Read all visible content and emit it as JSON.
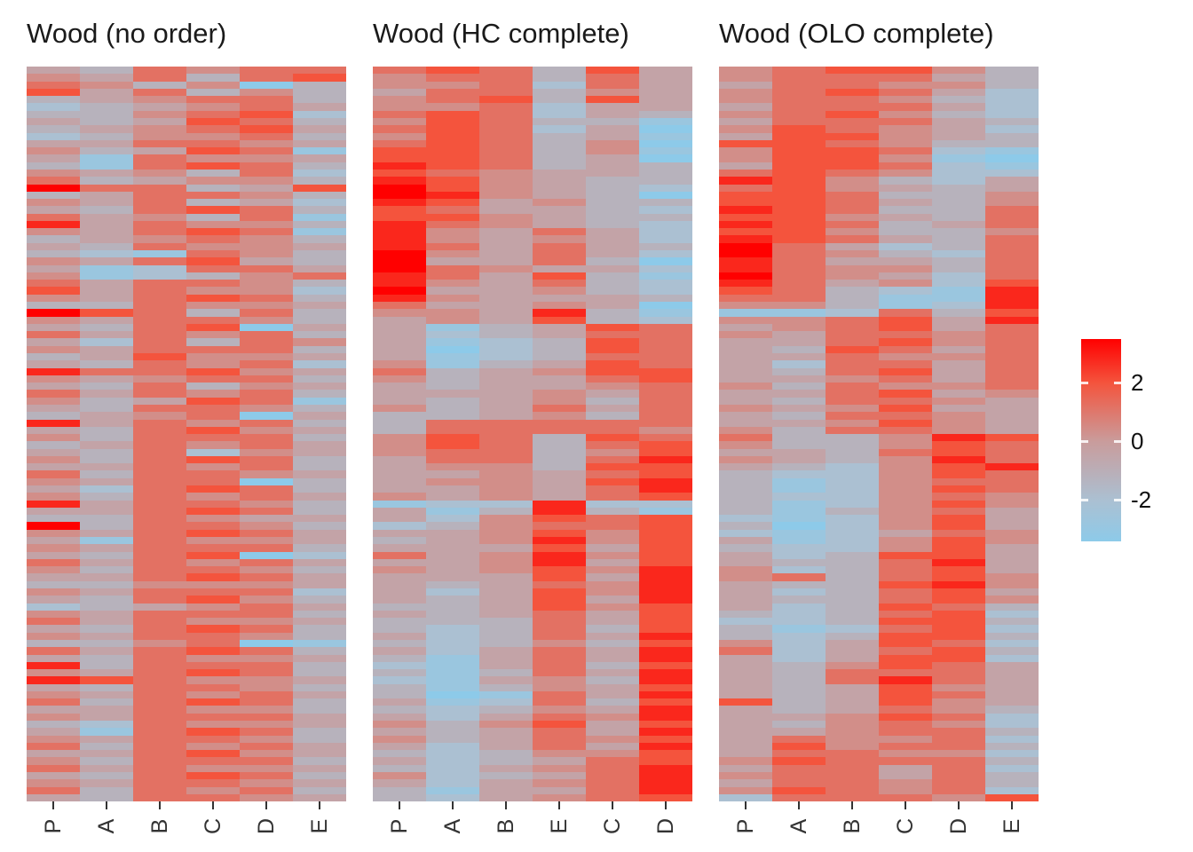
{
  "chart_data": {
    "type": "heatmap",
    "dataset": "Wood",
    "row_count": 100,
    "value_encoding": "Each row is a 6-digit string, one digit per column in displayed order; cell value = (digit - 4.5) * 0.8, i.e. digits 0..9 map to z-scores -3.6..+3.6",
    "value_range": [
      -3.6,
      3.6
    ],
    "colorscale": {
      "values": [
        -3.4,
        -2,
        0,
        2,
        3.5
      ],
      "colors": [
        "#8dcae9",
        "#abc0d2",
        "#c99c9c",
        "#f4543d",
        "#ff0000"
      ],
      "high_color": "#ff0000",
      "mid_color": "#c99c9c",
      "low_color": "#8dcae9"
    },
    "legend": {
      "orientation": "vertical",
      "position": "right",
      "tick_labels": [
        "2",
        "0",
        "-2"
      ],
      "tick_values": [
        2,
        0,
        -2
      ]
    },
    "panels": [
      {
        "title": "Wood (no order)",
        "columns": [
          "P",
          "A",
          "B",
          "C",
          "D",
          "E"
        ],
        "rows": [
          "436566",
          "546367",
          "653503",
          "746353",
          "345663",
          "234564",
          "335672",
          "434763",
          "345674",
          "235563",
          "446654",
          "534761",
          "416554",
          "316763",
          "545362",
          "634553",
          "966347",
          "346653",
          "546342",
          "436763",
          "645361",
          "846553",
          "546761",
          "345653",
          "436554",
          "321653",
          "546743",
          "412664",
          "512356",
          "646653",
          "746552",
          "546763",
          "336554",
          "976363",
          "546653",
          "436704",
          "646563",
          "426365",
          "546663",
          "347554",
          "436562",
          "866754",
          "545663",
          "436354",
          "646563",
          "534761",
          "436653",
          "345604",
          "846563",
          "436754",
          "536663",
          "346564",
          "436254",
          "536763",
          "446563",
          "636654",
          "546603",
          "426763",
          "536564",
          "846653",
          "446763",
          "336544",
          "936653",
          "546764",
          "416554",
          "546663",
          "436702",
          "646564",
          "536653",
          "446764",
          "335554",
          "546662",
          "436753",
          "234564",
          "546663",
          "646554",
          "436763",
          "546653",
          "335601",
          "646763",
          "436554",
          "836663",
          "546763",
          "876554",
          "436653",
          "546564",
          "636763",
          "446553",
          "546664",
          "326554",
          "416763",
          "546653",
          "636564",
          "446754",
          "536663",
          "646554",
          "436763",
          "546654",
          "636563",
          "436654"
        ]
      },
      {
        "title": "Wood (HC complete)",
        "columns": [
          "P",
          "A",
          "B",
          "E",
          "C",
          "D"
        ],
        "rows": [
          "676374",
          "566364",
          "556264",
          "466354",
          "567374",
          "556244",
          "676243",
          "576331",
          "676240",
          "576341",
          "676350",
          "776351",
          "776340",
          "876343",
          "765443",
          "875433",
          "975432",
          "985430",
          "874533",
          "764432",
          "775433",
          "865432",
          "854642",
          "854542",
          "864643",
          "954642",
          "944630",
          "965442",
          "864731",
          "854632",
          "944532",
          "854443",
          "644540",
          "554831",
          "454732",
          "413476",
          "423466",
          "412376",
          "402376",
          "412366",
          "513476",
          "634577",
          "534467",
          "434456",
          "444546",
          "434536",
          "534646",
          "334536",
          "366666",
          "366665",
          "576376",
          "576367",
          "566357",
          "466368",
          "455377",
          "445467",
          "455478",
          "445468",
          "545467",
          "122822",
          "413831",
          "425767",
          "235667",
          "445757",
          "345857",
          "444747",
          "645857",
          "445847",
          "545758",
          "444748",
          "434658",
          "424758",
          "434748",
          "334757",
          "434647",
          "333647",
          "323637",
          "423648",
          "323537",
          "424648",
          "314648",
          "214637",
          "313648",
          "214538",
          "313547",
          "301648",
          "412637",
          "323548",
          "424658",
          "535747",
          "434648",
          "534657",
          "424648",
          "323557",
          "423467",
          "324568",
          "523468",
          "424568",
          "314468",
          "324567"
        ]
      },
      {
        "title": "Wood (OLO complete)",
        "columns": [
          "P",
          "A",
          "B",
          "C",
          "D",
          "E"
        ],
        "rows": [
          "567753",
          "566643",
          "466553",
          "567642",
          "566532",
          "466642",
          "567532",
          "466643",
          "576542",
          "477543",
          "776533",
          "577621",
          "577510",
          "477621",
          "676522",
          "875324",
          "675434",
          "776335",
          "776435",
          "876336",
          "775436",
          "876346",
          "775335",
          "876436",
          "964236",
          "965326",
          "864436",
          "865536",
          "965426",
          "864527",
          "763218",
          "663118",
          "553128",
          "112637",
          "556748",
          "456746",
          "546656",
          "446756",
          "437646",
          "446556",
          "426646",
          "436746",
          "445646",
          "536556",
          "446745",
          "436654",
          "545744",
          "436654",
          "445754",
          "536654",
          "633587",
          "533576",
          "443676",
          "543586",
          "432578",
          "322576",
          "312566",
          "312576",
          "322565",
          "312575",
          "313564",
          "212574",
          "302574",
          "212465",
          "412575",
          "322574",
          "423774",
          "433684",
          "523674",
          "563675",
          "433785",
          "423674",
          "433675",
          "423763",
          "323672",
          "223773",
          "312672",
          "323773",
          "524762",
          "624673",
          "424772",
          "435764",
          "436664",
          "436864",
          "434754",
          "434764",
          "734754",
          "434653",
          "445762",
          "435652",
          "445663",
          "465562",
          "475663",
          "466552",
          "576663",
          "466462",
          "566463",
          "466563",
          "576562",
          "266657"
        ]
      }
    ]
  },
  "text_colors": {
    "title": "#1a1a1a",
    "axis_label": "#333333",
    "legend_label": "#111111"
  }
}
